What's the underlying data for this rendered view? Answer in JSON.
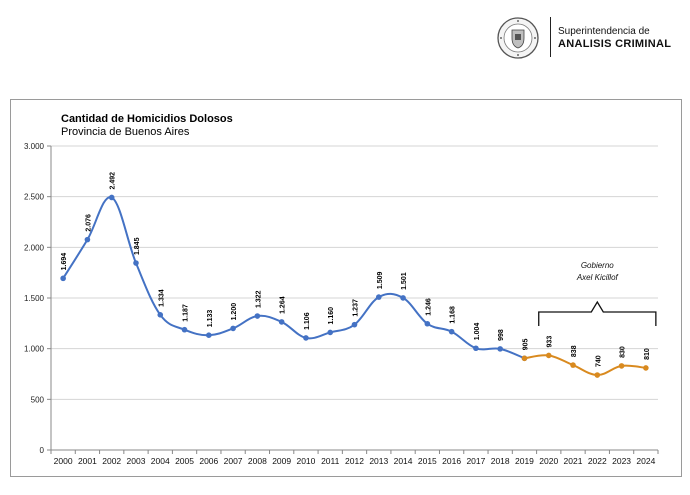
{
  "header": {
    "seal_icon": "police-seal-icon",
    "org_line1": "Superintendencia de",
    "org_line2": "ANALISIS CRIMINAL"
  },
  "chart_data": {
    "type": "line",
    "title": "Cantidad de Homicidios Dolosos",
    "subtitle": "Provincia de Buenos Aires",
    "xlabel": "",
    "ylabel": "",
    "ylim": [
      0,
      3000
    ],
    "yticks": [
      0,
      500,
      1000,
      1500,
      2000,
      2500,
      3000
    ],
    "ytick_labels": [
      "0",
      "500",
      "1.000",
      "1.500",
      "2.000",
      "2.500",
      "3.000"
    ],
    "grid": true,
    "categories": [
      "2000",
      "2001",
      "2002",
      "2003",
      "2004",
      "2005",
      "2006",
      "2007",
      "2008",
      "2009",
      "2010",
      "2011",
      "2012",
      "2013",
      "2014",
      "2015",
      "2016",
      "2017",
      "2018",
      "2019",
      "2020",
      "2021",
      "2022",
      "2023",
      "2024"
    ],
    "series": [
      {
        "color": "#4472c4",
        "x": [
          "2000",
          "2001",
          "2002",
          "2003",
          "2004",
          "2005",
          "2006",
          "2007",
          "2008",
          "2009",
          "2010",
          "2011",
          "2012",
          "2013",
          "2014",
          "2015",
          "2016",
          "2017",
          "2018",
          "2019"
        ],
        "values": [
          1694,
          2076,
          2492,
          1845,
          1334,
          1187,
          1133,
          1200,
          1322,
          1264,
          1106,
          1160,
          1237,
          1509,
          1501,
          1246,
          1168,
          1004,
          998,
          905
        ],
        "labels": [
          "1.694",
          "2.076",
          "2.492",
          "1.845",
          "1.334",
          "1.187",
          "1.133",
          "1.200",
          "1.322",
          "1.264",
          "1.106",
          "1.160",
          "1.237",
          "1.509",
          "1.501",
          "1.246",
          "1.168",
          "1.004",
          "998",
          "905"
        ]
      },
      {
        "color": "#d98a1f",
        "x": [
          "2019",
          "2020",
          "2021",
          "2022",
          "2023",
          "2024"
        ],
        "values": [
          905,
          933,
          838,
          740,
          830,
          810
        ],
        "labels": [
          "",
          "933",
          "838",
          "740",
          "830",
          "810"
        ]
      }
    ],
    "annotation": {
      "line1": "Gobierno",
      "line2": "Axel Kicillof",
      "span": [
        "2020",
        "2024"
      ]
    }
  }
}
